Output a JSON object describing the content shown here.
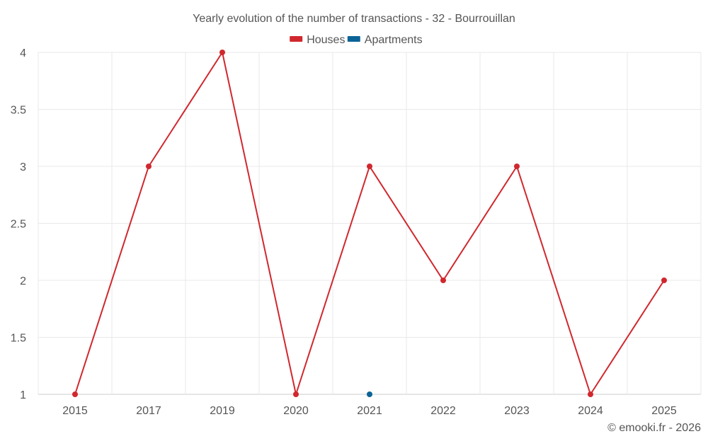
{
  "chart_data": {
    "type": "line",
    "title": "Yearly evolution of the number of transactions - 32 - Bourrouillan",
    "categories": [
      "2015",
      "2017",
      "2019",
      "2020",
      "2021",
      "2022",
      "2023",
      "2024",
      "2025"
    ],
    "series": [
      {
        "name": "Houses",
        "color": "#d0282e",
        "values": [
          1,
          3,
          4,
          1,
          3,
          2,
          3,
          1,
          2
        ]
      },
      {
        "name": "Apartments",
        "color": "#0b6496",
        "values": [
          null,
          null,
          null,
          null,
          1,
          null,
          null,
          null,
          null
        ]
      }
    ],
    "y_ticks": [
      "1",
      "1.5",
      "2",
      "2.5",
      "3",
      "3.5",
      "4"
    ],
    "ylim": [
      1,
      4
    ],
    "grid": true,
    "legend_position": "top-center",
    "credit": "© emooki.fr - 2026"
  }
}
